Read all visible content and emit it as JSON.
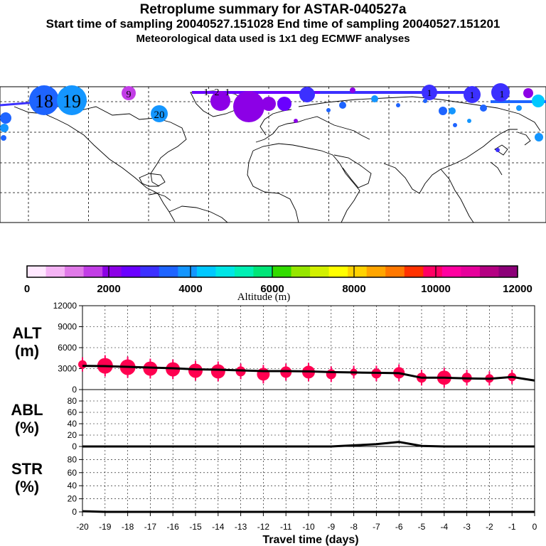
{
  "header": {
    "title": "Retroplume summary for ASTAR-040527a",
    "sampling": "Start time of sampling 20040527.151028     End time of sampling 20040527.151201",
    "met": "Meteorological data used is 1x1 deg ECMWF analyses"
  },
  "map": {
    "plume_labels": [
      "18",
      "19",
      "9",
      "20",
      "1",
      "2",
      "1",
      "1",
      "1",
      "1"
    ]
  },
  "colorbar": {
    "colors": [
      "#ffe8ff",
      "#f5b4f5",
      "#e07ae8",
      "#c23ee6",
      "#8c00e6",
      "#6a00ff",
      "#3c30ff",
      "#1e64ff",
      "#1496ff",
      "#00c8ff",
      "#00e6e6",
      "#00f0b4",
      "#00e678",
      "#32dc00",
      "#96e600",
      "#d2f000",
      "#ffff00",
      "#ffd200",
      "#ffa500",
      "#ff7800",
      "#ff3200",
      "#ff0064",
      "#ff00a0",
      "#e6009b",
      "#b40082",
      "#8c0078"
    ],
    "tick_labels": [
      "0",
      "2000",
      "4000",
      "6000",
      "8000",
      "10000",
      "12000"
    ],
    "label": "Altitude (m)"
  },
  "chart_data": [
    {
      "type": "line",
      "panel": "ALT",
      "ylabel_line1": "ALT",
      "ylabel_line2": "(m)",
      "ylim": [
        0,
        12000
      ],
      "yticks": [
        "0",
        "3000",
        "6000",
        "9000",
        "12000"
      ],
      "x": [
        -20,
        -19,
        -18,
        -17,
        -16,
        -15,
        -14,
        -13,
        -12,
        -11,
        -10,
        -9,
        -8,
        -7,
        -6,
        -5,
        -4,
        -3,
        -2,
        -1,
        0
      ],
      "values": [
        3400,
        3350,
        3250,
        3150,
        3050,
        2900,
        2850,
        2750,
        2650,
        2650,
        2600,
        2500,
        2450,
        2400,
        2350,
        1700,
        1700,
        1600,
        1550,
        1800,
        1300
      ],
      "bubbles": [
        {
          "x": -20,
          "y": 3600,
          "r": 6
        },
        {
          "x": -19,
          "y": 3400,
          "r": 11
        },
        {
          "x": -18,
          "y": 3200,
          "r": 11
        },
        {
          "x": -17,
          "y": 3000,
          "r": 10
        },
        {
          "x": -16,
          "y": 2900,
          "r": 10
        },
        {
          "x": -15,
          "y": 2700,
          "r": 10
        },
        {
          "x": -14,
          "y": 2600,
          "r": 10
        },
        {
          "x": -13,
          "y": 2600,
          "r": 7
        },
        {
          "x": -12,
          "y": 2200,
          "r": 9
        },
        {
          "x": -11,
          "y": 2500,
          "r": 8
        },
        {
          "x": -10,
          "y": 2500,
          "r": 9
        },
        {
          "x": -9,
          "y": 2200,
          "r": 7
        },
        {
          "x": -8,
          "y": 2500,
          "r": 5
        },
        {
          "x": -7,
          "y": 2300,
          "r": 7
        },
        {
          "x": -6,
          "y": 2400,
          "r": 8
        },
        {
          "x": -5,
          "y": 1700,
          "r": 7
        },
        {
          "x": -4,
          "y": 1700,
          "r": 10
        },
        {
          "x": -3,
          "y": 1700,
          "r": 7
        },
        {
          "x": -2,
          "y": 1600,
          "r": 6
        },
        {
          "x": -1,
          "y": 1800,
          "r": 6
        }
      ]
    },
    {
      "type": "line",
      "panel": "ABL",
      "ylabel_line1": "ABL",
      "ylabel_line2": "(%)",
      "ylim": [
        0,
        100
      ],
      "yticks": [
        "0",
        "20",
        "40",
        "60",
        "80"
      ],
      "x": [
        -20,
        -19,
        -18,
        -17,
        -16,
        -15,
        -14,
        -13,
        -12,
        -11,
        -10,
        -9,
        -8,
        -7,
        -6,
        -5,
        -4,
        -3,
        -2,
        -1,
        0
      ],
      "values": [
        0,
        0,
        0,
        0,
        0,
        0,
        0,
        0,
        0,
        0,
        0,
        0,
        2,
        4,
        8,
        1,
        0,
        0,
        0,
        0,
        0
      ]
    },
    {
      "type": "line",
      "panel": "STR",
      "ylabel_line1": "STR",
      "ylabel_line2": "(%)",
      "ylim": [
        0,
        100
      ],
      "yticks": [
        "0",
        "20",
        "40",
        "60",
        "80"
      ],
      "x": [
        -20,
        -19,
        -18,
        -17,
        -16,
        -15,
        -14,
        -13,
        -12,
        -11,
        -10,
        -9,
        -8,
        -7,
        -6,
        -5,
        -4,
        -3,
        -2,
        -1,
        0
      ],
      "values": [
        1,
        0,
        0,
        0,
        0,
        0,
        0,
        0,
        0,
        0,
        0,
        0,
        0,
        0,
        0,
        0,
        0,
        0,
        0,
        0,
        0
      ]
    }
  ],
  "xaxis": {
    "tick_labels": [
      "-20",
      "-19",
      "-18",
      "-17",
      "-16",
      "-15",
      "-14",
      "-13",
      "-12",
      "-11",
      "-10",
      "-9",
      "-8",
      "-7",
      "-6",
      "-5",
      "-4",
      "-3",
      "-2",
      "-1",
      "0"
    ],
    "label": "Travel time (days)"
  }
}
